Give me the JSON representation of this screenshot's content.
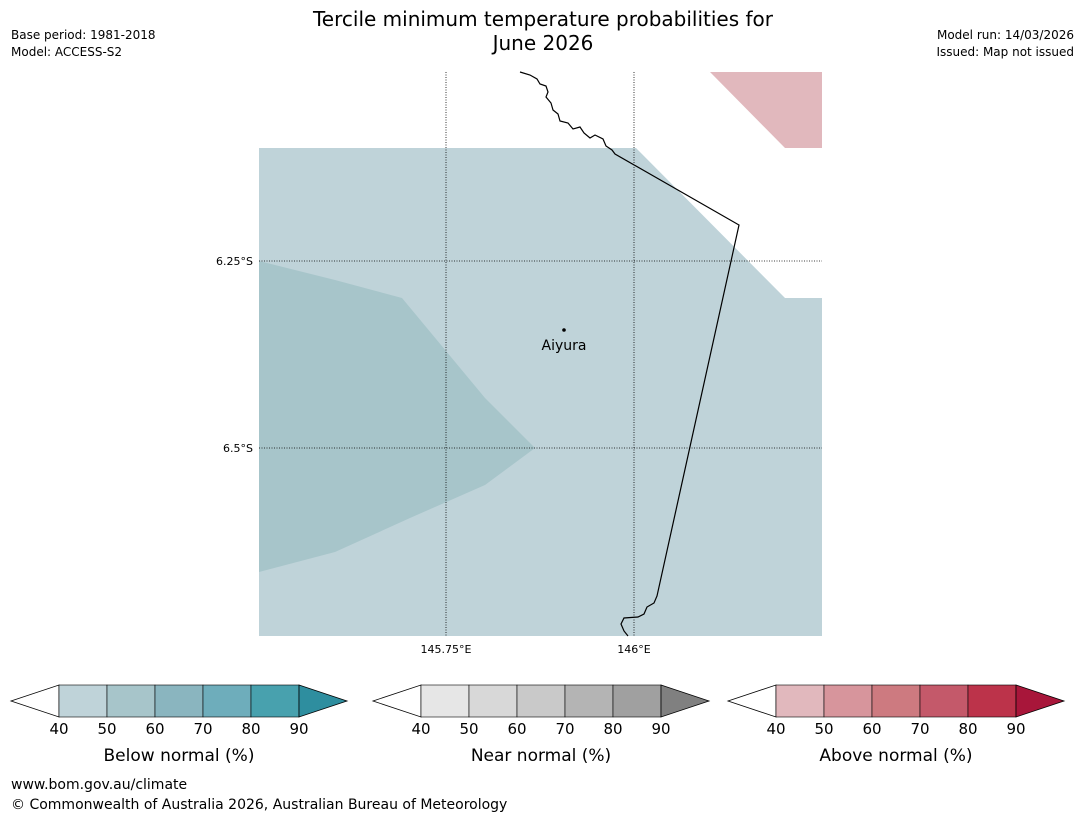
{
  "header": {
    "base_period": "Base period: 1981-2018",
    "model": "Model: ACCESS-S2",
    "title_line1": "Tercile minimum temperature probabilities for",
    "title_line2": "June 2026",
    "model_run": "Model run: 14/03/2026",
    "issued": "Issued: Map not issued"
  },
  "map": {
    "lat_labels": [
      "6.25°S",
      "6.5°S"
    ],
    "lon_labels": [
      "145.75°E",
      "146°E"
    ],
    "place_name": "Aiyura"
  },
  "legends": [
    {
      "name": "below",
      "title": "Below normal (%)",
      "ticks": [
        "40",
        "50",
        "60",
        "70",
        "80",
        "90"
      ],
      "colors": [
        "#bfd3d9",
        "#a7c5ca",
        "#8ab5bf",
        "#6eadbb",
        "#48a1ae",
        "#2e8e9f"
      ]
    },
    {
      "name": "near",
      "title": "Near normal (%)",
      "ticks": [
        "40",
        "50",
        "60",
        "70",
        "80",
        "90"
      ],
      "colors": [
        "#e6e6e6",
        "#d8d8d8",
        "#c9c9c9",
        "#b4b4b4",
        "#a0a0a0",
        "#808080"
      ]
    },
    {
      "name": "above",
      "title": "Above normal (%)",
      "ticks": [
        "40",
        "50",
        "60",
        "70",
        "80",
        "90"
      ],
      "colors": [
        "#e1b8bd",
        "#d7959c",
        "#cd7a80",
        "#c4596a",
        "#bc334a",
        "#a8163a"
      ]
    }
  ],
  "colors": {
    "below_40_50": "#bfd3d9",
    "below_50_60": "#a7c5ca",
    "above_40_50": "#e1b8bd",
    "white": "#ffffff"
  },
  "footer": {
    "url": "www.bom.gov.au/climate",
    "copyright": "© Commonwealth of Australia 2026, Australian Bureau of Meteorology"
  }
}
